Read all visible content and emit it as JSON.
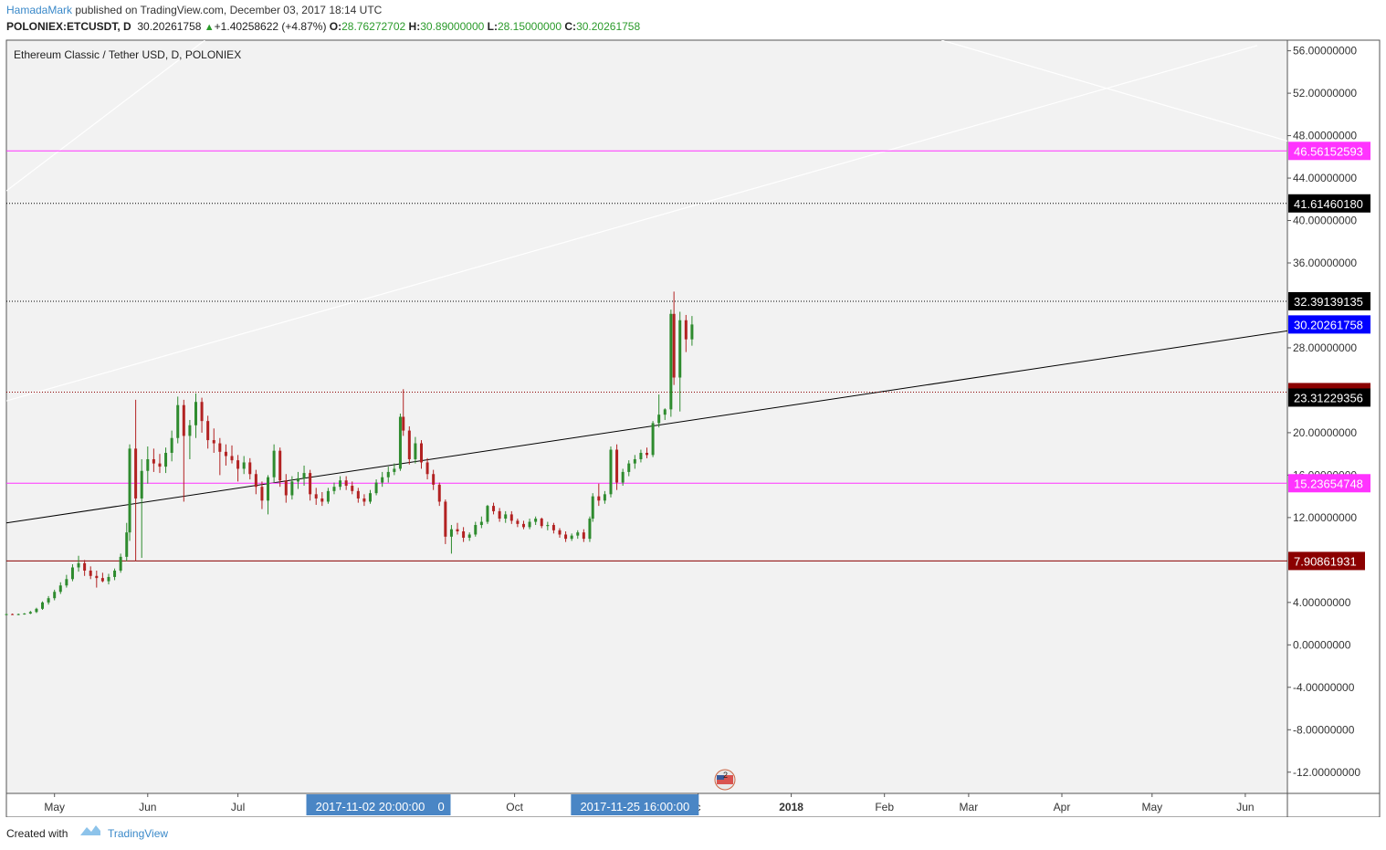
{
  "header": {
    "author": "HamadaMark",
    "published": " published on TradingView.com, December 03, 2017 18:14 UTC",
    "symbol": "POLONIEX:ETCUSDT, D",
    "last": "30.20261758",
    "change": "+1.40258622 (+4.87%)",
    "o_label": "O:",
    "o_value": "28.76272702",
    "h_label": "H:",
    "h_value": "30.89000000",
    "l_label": "L:",
    "l_value": "28.15000000",
    "c_label": "C:",
    "c_value": "30.20261758"
  },
  "footer": {
    "created_with": "Created with",
    "brand": "TradingView"
  },
  "chart_data": {
    "type": "candlestick",
    "title": "Ethereum Classic / Tether USD, D, POLONIEX",
    "ylim": [
      -14,
      57
    ],
    "y_ticks": [
      "56.00000000",
      "52.00000000",
      "48.00000000",
      "44.00000000",
      "40.00000000",
      "36.00000000",
      "28.00000000",
      "20.00000000",
      "16.00000000",
      "12.00000000",
      "4.00000000",
      "0.00000000",
      "-4.00000000",
      "-8.00000000",
      "-12.00000000"
    ],
    "x_ticks": [
      {
        "label": "May",
        "date": "2017-05-01"
      },
      {
        "label": "Jun",
        "date": "2017-06-01"
      },
      {
        "label": "Jul",
        "date": "2017-07-01"
      },
      {
        "label": "Oct",
        "date": "2017-10-01"
      },
      {
        "label": "c",
        "date": "2017-12-01"
      },
      {
        "label": "2018",
        "date": "2018-01-01",
        "bold": true
      },
      {
        "label": "Feb",
        "date": "2018-02-01"
      },
      {
        "label": "Mar",
        "date": "2018-03-01"
      },
      {
        "label": "Apr",
        "date": "2018-04-01"
      },
      {
        "label": "May",
        "date": "2018-05-01"
      },
      {
        "label": "Jun",
        "date": "2018-06-01"
      }
    ],
    "x_range": [
      "2017-04-15",
      "2018-06-15"
    ],
    "crosshair_labels": [
      {
        "text": "2017-11-02 20:00:00",
        "trail": "0",
        "date": "2017-08-14"
      },
      {
        "text": "2017-11-25 16:00:00",
        "date": "2017-11-10"
      }
    ],
    "horizontal_levels": [
      {
        "value": 46.56152593,
        "label": "46.56152593",
        "color": "#ff33ff",
        "style": "solid"
      },
      {
        "value": 41.6146018,
        "label": "41.61460180",
        "color": "#000000",
        "style": "dotted"
      },
      {
        "value": 32.39139135,
        "label": "32.39139135",
        "color": "#000000",
        "style": "dotted"
      },
      {
        "value": 23.82686756,
        "label": "23.82686756",
        "color": "#8b0000",
        "style": "dotted"
      },
      {
        "value": 15.23654748,
        "label": "15.23654748",
        "color": "#ff33ff",
        "style": "solid"
      },
      {
        "value": 7.90861931,
        "label": "7.90861931",
        "color": "#8b0000",
        "style": "solid"
      }
    ],
    "price_labels": [
      {
        "value": 30.20261758,
        "label": "30.20261758",
        "color": "#0000ff"
      },
      {
        "value": 23.31229356,
        "label": "23.31229356",
        "color": "#000000"
      }
    ],
    "trend_lines": [
      {
        "from": [
          "2017-04-15",
          11.5
        ],
        "to": [
          "2018-06-15",
          29.6
        ],
        "color": "#000000"
      },
      {
        "from": [
          "2017-04-15",
          23.0
        ],
        "to": [
          "2018-06-05",
          56.5
        ],
        "color": "#ffffff"
      },
      {
        "from": [
          "2017-04-15",
          42.8
        ],
        "to": [
          "2017-06-20",
          57.0
        ],
        "color": "#ffffff"
      },
      {
        "from": [
          "2018-02-20",
          57.0
        ],
        "to": [
          "2018-06-15",
          47.5
        ],
        "color": "#ffffff"
      }
    ],
    "candle_colors": {
      "up": "#2e8b2e",
      "down": "#b22222"
    },
    "candles": [
      [
        "2017-04-15",
        2.85,
        2.95,
        2.8,
        2.9
      ],
      [
        "2017-04-17",
        2.9,
        2.95,
        2.82,
        2.85
      ],
      [
        "2017-04-19",
        2.85,
        2.95,
        2.8,
        2.9
      ],
      [
        "2017-04-21",
        2.9,
        3.0,
        2.85,
        2.95
      ],
      [
        "2017-04-23",
        2.95,
        3.2,
        2.9,
        3.1
      ],
      [
        "2017-04-25",
        3.1,
        3.5,
        3.0,
        3.4
      ],
      [
        "2017-04-27",
        3.4,
        4.1,
        3.3,
        4.0
      ],
      [
        "2017-04-29",
        4.0,
        4.6,
        3.8,
        4.4
      ],
      [
        "2017-05-01",
        4.4,
        5.2,
        4.2,
        5.0
      ],
      [
        "2017-05-03",
        5.0,
        5.9,
        4.8,
        5.6
      ],
      [
        "2017-05-05",
        5.6,
        6.6,
        5.4,
        6.2
      ],
      [
        "2017-05-07",
        6.2,
        7.6,
        6.0,
        7.3
      ],
      [
        "2017-05-09",
        7.3,
        8.4,
        6.9,
        7.7
      ],
      [
        "2017-05-11",
        7.7,
        8.0,
        6.5,
        7.0
      ],
      [
        "2017-05-13",
        7.0,
        7.4,
        6.2,
        6.5
      ],
      [
        "2017-05-15",
        6.5,
        7.0,
        5.4,
        6.3
      ],
      [
        "2017-05-17",
        6.3,
        6.8,
        5.9,
        6.0
      ],
      [
        "2017-05-19",
        6.0,
        6.7,
        5.7,
        6.4
      ],
      [
        "2017-05-21",
        6.4,
        7.2,
        6.1,
        7.0
      ],
      [
        "2017-05-23",
        7.0,
        8.6,
        6.8,
        8.3
      ],
      [
        "2017-05-25",
        8.3,
        11.5,
        7.9,
        10.6
      ],
      [
        "2017-05-26",
        10.6,
        18.9,
        9.8,
        18.5
      ],
      [
        "2017-05-28",
        18.5,
        23.1,
        7.9,
        13.8
      ],
      [
        "2017-05-30",
        13.8,
        17.5,
        8.2,
        16.4
      ],
      [
        "2017-06-01",
        16.4,
        18.7,
        15.2,
        17.5
      ],
      [
        "2017-06-03",
        17.5,
        18.5,
        16.3,
        17.1
      ],
      [
        "2017-06-05",
        17.1,
        18.0,
        16.2,
        16.8
      ],
      [
        "2017-06-07",
        16.8,
        18.6,
        16.2,
        18.1
      ],
      [
        "2017-06-09",
        18.1,
        20.2,
        17.3,
        19.5
      ],
      [
        "2017-06-11",
        19.5,
        23.4,
        19.0,
        22.6
      ],
      [
        "2017-06-13",
        22.6,
        23.1,
        13.5,
        19.7
      ],
      [
        "2017-06-15",
        19.7,
        21.2,
        17.5,
        20.7
      ],
      [
        "2017-06-17",
        20.7,
        23.7,
        19.5,
        22.9
      ],
      [
        "2017-06-19",
        22.9,
        23.3,
        20.0,
        21.1
      ],
      [
        "2017-06-21",
        21.1,
        21.6,
        18.5,
        19.3
      ],
      [
        "2017-06-23",
        19.3,
        20.4,
        18.1,
        19.0
      ],
      [
        "2017-06-25",
        19.0,
        19.5,
        16.0,
        18.2
      ],
      [
        "2017-06-27",
        18.2,
        18.9,
        16.9,
        17.8
      ],
      [
        "2017-06-29",
        17.8,
        18.8,
        17.1,
        17.4
      ],
      [
        "2017-07-01",
        17.4,
        17.9,
        15.4,
        16.6
      ],
      [
        "2017-07-03",
        16.6,
        17.8,
        16.1,
        17.2
      ],
      [
        "2017-07-05",
        17.2,
        17.6,
        15.6,
        16.1
      ],
      [
        "2017-07-07",
        16.1,
        16.5,
        14.2,
        14.9
      ],
      [
        "2017-07-09",
        14.9,
        15.4,
        12.8,
        13.6
      ],
      [
        "2017-07-11",
        13.6,
        16.0,
        12.3,
        15.8
      ],
      [
        "2017-07-13",
        15.8,
        18.9,
        15.3,
        18.3
      ],
      [
        "2017-07-15",
        18.3,
        18.6,
        14.9,
        15.5
      ],
      [
        "2017-07-17",
        15.5,
        16.1,
        13.4,
        14.1
      ],
      [
        "2017-07-19",
        14.1,
        15.9,
        13.7,
        15.4
      ],
      [
        "2017-07-21",
        15.4,
        16.3,
        14.7,
        15.7
      ],
      [
        "2017-07-23",
        15.7,
        16.9,
        15.0,
        16.2
      ],
      [
        "2017-07-25",
        16.2,
        16.5,
        13.6,
        14.2
      ],
      [
        "2017-07-27",
        14.2,
        14.8,
        13.2,
        13.8
      ],
      [
        "2017-07-29",
        13.8,
        14.4,
        13.1,
        13.5
      ],
      [
        "2017-07-31",
        13.5,
        14.8,
        13.3,
        14.5
      ],
      [
        "2017-08-02",
        14.5,
        15.3,
        14.2,
        14.9
      ],
      [
        "2017-08-04",
        14.9,
        15.9,
        14.6,
        15.5
      ],
      [
        "2017-08-06",
        15.5,
        15.9,
        14.6,
        15.0
      ],
      [
        "2017-08-08",
        15.0,
        15.4,
        14.2,
        14.5
      ],
      [
        "2017-08-10",
        14.5,
        14.8,
        13.4,
        13.8
      ],
      [
        "2017-08-12",
        13.8,
        14.2,
        13.1,
        13.5
      ],
      [
        "2017-08-14",
        13.5,
        14.6,
        13.3,
        14.3
      ],
      [
        "2017-08-16",
        14.3,
        15.6,
        14.1,
        15.3
      ],
      [
        "2017-08-18",
        15.3,
        16.3,
        14.9,
        15.8
      ],
      [
        "2017-08-20",
        15.8,
        16.8,
        15.3,
        16.3
      ],
      [
        "2017-08-22",
        16.3,
        17.1,
        16.0,
        16.6
      ],
      [
        "2017-08-24",
        16.6,
        21.8,
        16.4,
        21.5
      ],
      [
        "2017-08-25",
        21.5,
        24.1,
        19.7,
        20.2
      ],
      [
        "2017-08-27",
        20.2,
        20.6,
        17.0,
        17.5
      ],
      [
        "2017-08-29",
        17.5,
        19.6,
        17.1,
        19.0
      ],
      [
        "2017-08-31",
        19.0,
        19.3,
        16.6,
        17.2
      ],
      [
        "2017-09-02",
        17.2,
        17.6,
        15.6,
        16.1
      ],
      [
        "2017-09-04",
        16.1,
        16.5,
        14.6,
        15.1
      ],
      [
        "2017-09-06",
        15.1,
        15.3,
        13.1,
        13.5
      ],
      [
        "2017-09-08",
        13.5,
        13.7,
        9.5,
        10.2
      ],
      [
        "2017-09-10",
        10.2,
        11.3,
        8.6,
        10.9
      ],
      [
        "2017-09-12",
        10.9,
        11.5,
        10.4,
        10.7
      ],
      [
        "2017-09-14",
        10.7,
        11.1,
        9.7,
        10.1
      ],
      [
        "2017-09-16",
        10.1,
        10.6,
        9.8,
        10.4
      ],
      [
        "2017-09-18",
        10.4,
        11.6,
        10.2,
        11.3
      ],
      [
        "2017-09-20",
        11.3,
        12.1,
        11.0,
        11.6
      ],
      [
        "2017-09-22",
        11.6,
        13.2,
        11.4,
        13.1
      ],
      [
        "2017-09-24",
        13.1,
        13.4,
        12.3,
        12.6
      ],
      [
        "2017-09-26",
        12.6,
        12.9,
        11.6,
        11.9
      ],
      [
        "2017-09-28",
        11.9,
        12.6,
        11.5,
        12.3
      ],
      [
        "2017-09-30",
        12.3,
        12.6,
        11.4,
        11.7
      ],
      [
        "2017-10-02",
        11.7,
        11.9,
        11.1,
        11.4
      ],
      [
        "2017-10-04",
        11.4,
        11.7,
        10.9,
        11.1
      ],
      [
        "2017-10-06",
        11.1,
        11.9,
        10.9,
        11.6
      ],
      [
        "2017-10-08",
        11.6,
        12.1,
        11.3,
        11.9
      ],
      [
        "2017-10-10",
        11.9,
        12.0,
        11.0,
        11.2
      ],
      [
        "2017-10-12",
        11.2,
        11.6,
        10.8,
        11.3
      ],
      [
        "2017-10-14",
        11.3,
        11.5,
        10.5,
        10.8
      ],
      [
        "2017-10-16",
        10.8,
        11.0,
        10.1,
        10.4
      ],
      [
        "2017-10-18",
        10.4,
        10.7,
        9.7,
        10.0
      ],
      [
        "2017-10-20",
        10.0,
        10.5,
        9.8,
        10.3
      ],
      [
        "2017-10-22",
        10.3,
        10.8,
        10.0,
        10.6
      ],
      [
        "2017-10-24",
        10.6,
        10.9,
        9.7,
        10.0
      ],
      [
        "2017-10-26",
        10.0,
        12.1,
        9.7,
        11.9
      ],
      [
        "2017-10-27",
        11.9,
        14.3,
        11.6,
        14.0
      ],
      [
        "2017-10-29",
        14.0,
        15.2,
        13.1,
        13.6
      ],
      [
        "2017-10-31",
        13.6,
        14.5,
        13.3,
        14.2
      ],
      [
        "2017-11-02",
        14.2,
        18.7,
        13.9,
        18.4
      ],
      [
        "2017-11-04",
        18.4,
        18.9,
        14.6,
        15.3
      ],
      [
        "2017-11-06",
        15.3,
        16.6,
        15.0,
        16.3
      ],
      [
        "2017-11-08",
        16.3,
        17.4,
        15.9,
        17.1
      ],
      [
        "2017-11-10",
        17.1,
        17.9,
        16.6,
        17.5
      ],
      [
        "2017-11-12",
        17.5,
        18.4,
        17.2,
        18.1
      ],
      [
        "2017-11-14",
        18.1,
        18.6,
        17.6,
        17.9
      ],
      [
        "2017-11-16",
        17.9,
        21.1,
        17.7,
        20.9
      ],
      [
        "2017-11-18",
        20.9,
        23.6,
        20.5,
        21.7
      ],
      [
        "2017-11-20",
        21.7,
        22.3,
        21.2,
        22.2
      ],
      [
        "2017-11-22",
        22.2,
        31.6,
        21.5,
        31.2
      ],
      [
        "2017-11-23",
        31.2,
        33.3,
        24.5,
        25.2
      ],
      [
        "2017-11-25",
        25.2,
        31.4,
        22.0,
        30.6
      ],
      [
        "2017-11-27",
        30.6,
        31.1,
        27.6,
        28.8
      ],
      [
        "2017-11-29",
        28.8,
        31.0,
        28.2,
        30.2
      ]
    ]
  }
}
